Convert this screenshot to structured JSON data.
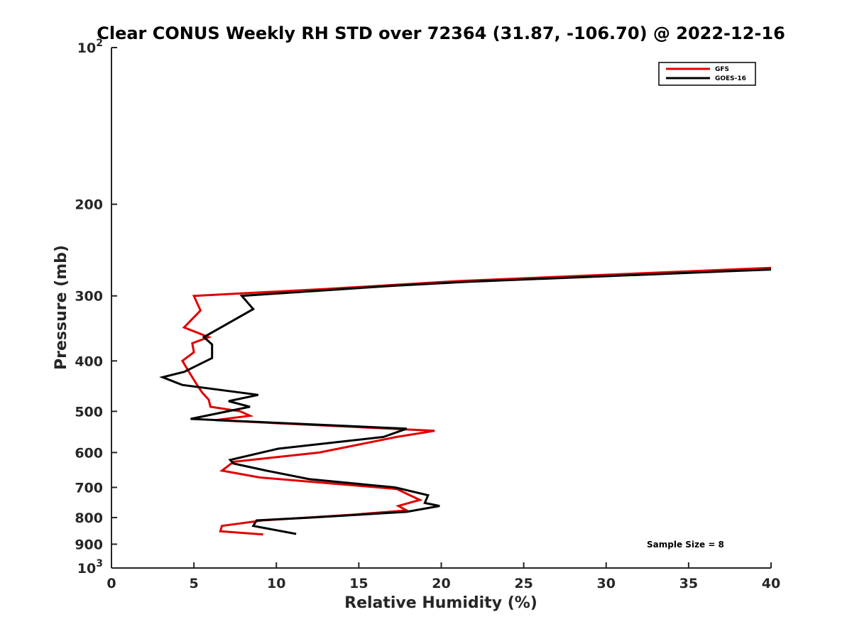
{
  "chart_data": {
    "type": "line",
    "title": "Clear CONUS Weekly RH STD over 72364 (31.87, -106.70) @ 2022-12-16",
    "xlabel": "Relative Humidity (%)",
    "ylabel": "Pressure (mb)",
    "xlim": [
      0,
      40
    ],
    "ylim": [
      100,
      1000
    ],
    "y_scale": "log",
    "y_reversed": true,
    "grid": false,
    "legend_position": "top-right",
    "x_ticks": [
      0,
      5,
      10,
      15,
      20,
      25,
      30,
      35,
      40
    ],
    "x_tick_labels": [
      "0",
      "5",
      "10",
      "15",
      "20",
      "25",
      "30",
      "35",
      "40"
    ],
    "y_ticks": [
      100,
      200,
      300,
      400,
      500,
      600,
      700,
      800,
      900,
      1000
    ],
    "y_tick_labels": [
      {
        "base": "10",
        "exp": "2"
      },
      {
        "base": "200",
        "exp": ""
      },
      {
        "base": "300",
        "exp": ""
      },
      {
        "base": "400",
        "exp": ""
      },
      {
        "base": "500",
        "exp": ""
      },
      {
        "base": "600",
        "exp": ""
      },
      {
        "base": "700",
        "exp": ""
      },
      {
        "base": "800",
        "exp": ""
      },
      {
        "base": "900",
        "exp": ""
      },
      {
        "base": "10",
        "exp": "3"
      }
    ],
    "series": [
      {
        "name": "GFS",
        "color": "#e00000",
        "x": [
          40.0,
          21.0,
          13.0,
          5.0,
          5.4,
          4.4,
          5.9,
          4.9,
          5.0,
          4.3,
          4.7,
          5.1,
          5.5,
          5.9,
          6.0,
          7.8,
          8.4,
          6.3,
          19.6,
          17.3,
          12.6,
          7.4,
          6.7,
          9.0,
          17.3,
          17.9,
          18.7,
          17.4,
          17.9,
          14.6,
          9.2,
          6.7,
          6.6,
          9.2
        ],
        "y": [
          265,
          281,
          291,
          300,
          320,
          345,
          360,
          370,
          385,
          400,
          420,
          440,
          460,
          475,
          490,
          500,
          510,
          520,
          545,
          560,
          600,
          625,
          650,
          670,
          705,
          720,
          740,
          760,
          775,
          790,
          810,
          830,
          850,
          862
        ]
      },
      {
        "name": "GOES-16",
        "color": "#000000",
        "x": [
          40.0,
          21.5,
          17.0,
          7.9,
          8.6,
          5.6,
          6.1,
          6.1,
          4.4,
          3.1,
          4.3,
          8.9,
          7.1,
          8.4,
          4.8,
          17.9,
          16.5,
          10.1,
          7.2,
          7.4,
          9.4,
          12.0,
          17.2,
          19.2,
          19.0,
          19.9,
          17.9,
          12.1,
          8.8,
          8.6,
          11.2
        ],
        "y": [
          267,
          282,
          287,
          300,
          318,
          360,
          372,
          395,
          420,
          430,
          445,
          465,
          478,
          490,
          517,
          540,
          560,
          590,
          620,
          630,
          650,
          675,
          700,
          725,
          750,
          760,
          780,
          800,
          810,
          830,
          860
        ]
      }
    ],
    "annotation": "Sample Size = 8"
  }
}
